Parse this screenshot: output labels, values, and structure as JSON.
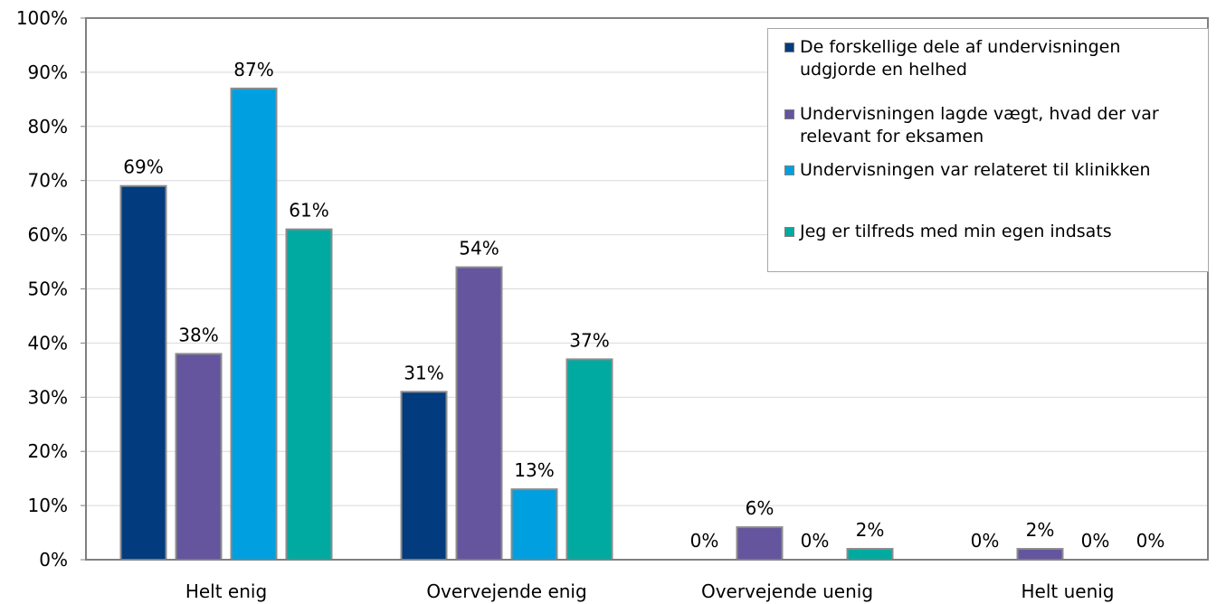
{
  "chart_data": {
    "type": "bar",
    "categories": [
      "Helt enig",
      "Overvejende enig",
      "Overvejende uenig",
      "Helt uenig"
    ],
    "series": [
      {
        "name": "De forskellige dele af undervisningen udgjorde en helhed",
        "color": "#023b7e",
        "values": [
          69,
          31,
          0,
          0
        ],
        "labels": [
          "69%",
          "31%",
          "0%",
          "0%"
        ]
      },
      {
        "name": "Undervisningen lagde vægt, hvad der var relevant for eksamen",
        "color": "#64559e",
        "values": [
          38,
          54,
          6,
          2
        ],
        "labels": [
          "38%",
          "54%",
          "6%",
          "2%"
        ]
      },
      {
        "name": "Undervisningen var relateret til klinikken",
        "color": "#00a0e0",
        "values": [
          87,
          13,
          0,
          0
        ],
        "labels": [
          "87%",
          "13%",
          "0%",
          "0%"
        ]
      },
      {
        "name": "Jeg er tilfreds med min egen indsats",
        "color": "#00aaa0",
        "values": [
          61,
          37,
          2,
          0
        ],
        "labels": [
          "61%",
          "37%",
          "2%",
          "0%"
        ]
      }
    ],
    "ylim": [
      0,
      100
    ],
    "yticks": [
      "0%",
      "10%",
      "20%",
      "30%",
      "40%",
      "50%",
      "60%",
      "70%",
      "80%",
      "90%",
      "100%"
    ],
    "grid": true,
    "legend_position": "top-right"
  }
}
